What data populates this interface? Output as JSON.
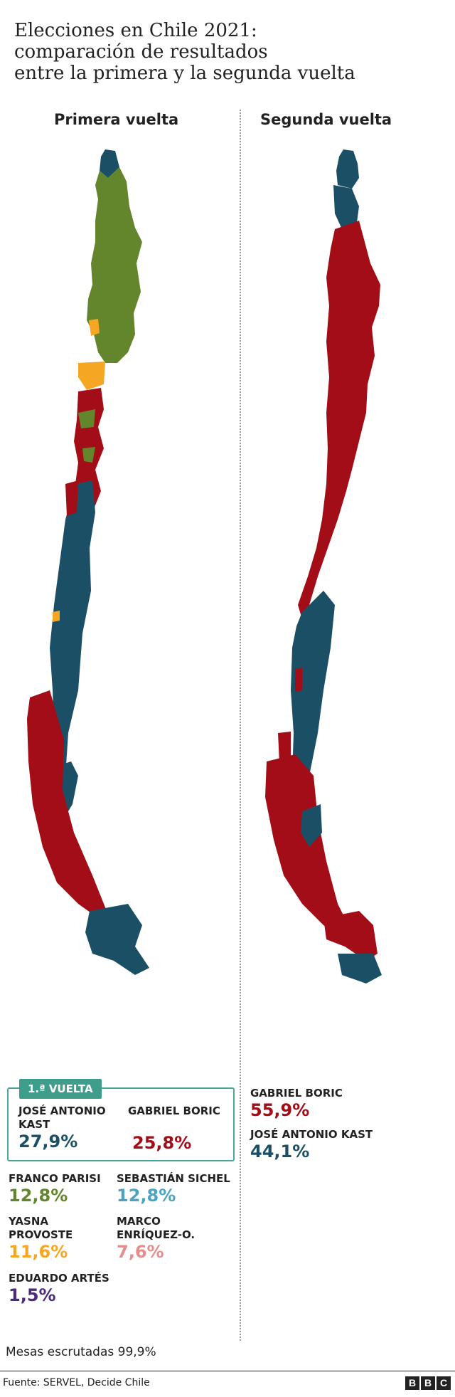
{
  "title": {
    "line1": "Elecciones en Chile 2021:",
    "line2": "comparación de resultados",
    "line3": "entre la primera y la segunda vuelta"
  },
  "columns": {
    "left": "Primera vuelta",
    "right": "Segunda vuelta"
  },
  "colors": {
    "kast": "#1b4f65",
    "boric": "#a30d17",
    "parisi": "#63862c",
    "provoste": "#f5a623",
    "sichel": "#4aa3c2",
    "enriquez": "#e58d8d",
    "artes": "#4a2b7d",
    "box_border": "#4aa89a",
    "tag_bg": "#3f9d8c"
  },
  "first_round": {
    "tag": "1.ª VUELTA",
    "boxed": [
      {
        "name": "José Antonio Kast",
        "pct": "27,9%",
        "color": "#1b4f65"
      },
      {
        "name": "Gabriel Boric",
        "pct": "25,8%",
        "color": "#a30d17"
      }
    ],
    "others": [
      {
        "name": "Franco Parisi",
        "pct": "12,8%",
        "color": "#63862c"
      },
      {
        "name": "Sebastián Sichel",
        "pct": "12,8%",
        "color": "#4aa3c2"
      },
      {
        "name": "Yasna Provoste",
        "pct": "11,6%",
        "color": "#f5a623"
      },
      {
        "name": "Marco Enríquez-O.",
        "pct": "7,6%",
        "color": "#e58d8d"
      },
      {
        "name": "Eduardo Artés",
        "pct": "1,5%",
        "color": "#4a2b7d"
      }
    ]
  },
  "second_round": [
    {
      "name": "Gabriel Boric",
      "pct": "55,9%",
      "color": "#a30d17"
    },
    {
      "name": "José Antonio Kast",
      "pct": "44,1%",
      "color": "#1b4f65"
    }
  ],
  "footer": {
    "mesas": "Mesas escrutadas 99,9%",
    "source": "Fuente: SERVEL, Decide Chile",
    "logo_letters": [
      "B",
      "B",
      "C"
    ]
  }
}
